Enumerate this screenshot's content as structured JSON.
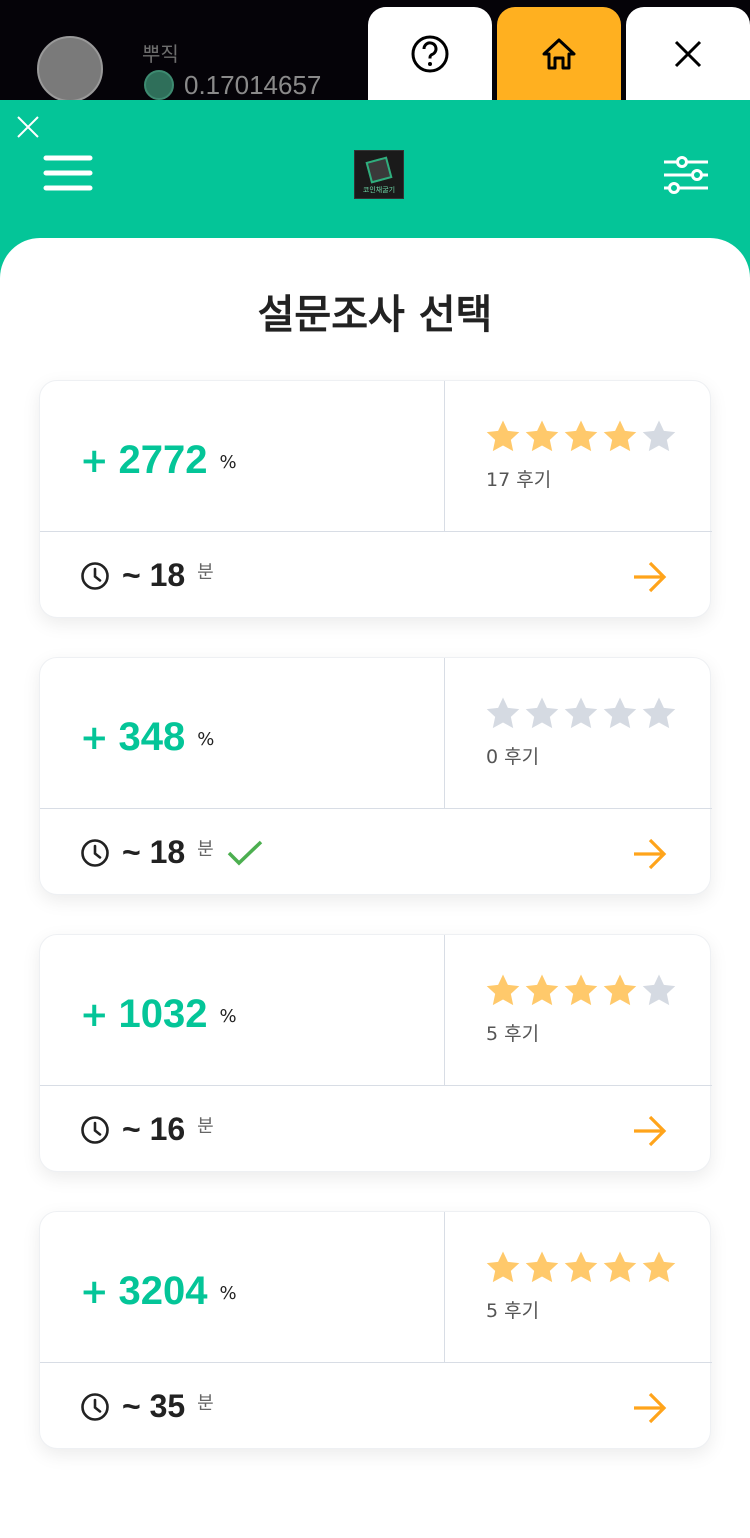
{
  "topbar": {
    "username": "뿌직",
    "balance": "0.17014657",
    "buttons": [
      {
        "icon": "help-icon"
      },
      {
        "icon": "home-icon",
        "color": "#ffb020"
      },
      {
        "icon": "close-icon"
      }
    ]
  },
  "header": {
    "logo_text": "코인채굴기",
    "accent": "#04c598"
  },
  "main": {
    "title": "설문조사 선택",
    "cards": [
      {
        "plus": "+",
        "percent": "2772",
        "unit": "%",
        "rating": 4,
        "reviews": "17 후기",
        "time": "~ 18",
        "time_unit": "분",
        "completed": false
      },
      {
        "plus": "+",
        "percent": "348",
        "unit": "%",
        "rating": 0,
        "reviews": "0 후기",
        "time": "~ 18",
        "time_unit": "분",
        "completed": true
      },
      {
        "plus": "+",
        "percent": "1032",
        "unit": "%",
        "rating": 4,
        "reviews": "5 후기",
        "time": "~ 16",
        "time_unit": "분",
        "completed": false
      },
      {
        "plus": "+",
        "percent": "3204",
        "unit": "%",
        "rating": 5,
        "reviews": "5 후기",
        "time": "~ 35",
        "time_unit": "분",
        "completed": false
      }
    ]
  },
  "colors": {
    "star_on": "#ffc96b",
    "star_off": "#d5dae2",
    "arrow": "#ffa41b",
    "check": "#4caf50"
  }
}
